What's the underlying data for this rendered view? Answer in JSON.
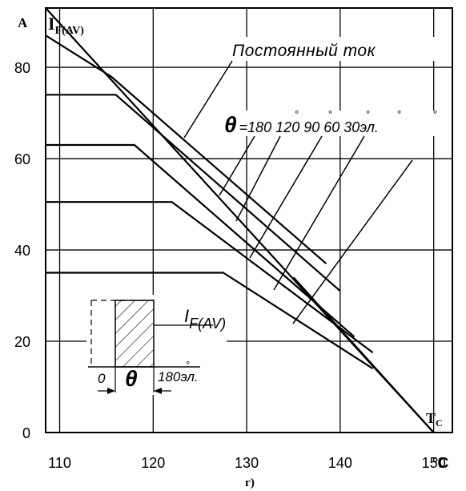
{
  "chart_data": {
    "type": "line",
    "xlim": [
      108.5,
      152
    ],
    "ylim": [
      0,
      93
    ],
    "x_ticks": [
      110,
      120,
      130,
      140,
      150
    ],
    "y_ticks": [
      0,
      20,
      40,
      60,
      80
    ],
    "x_tick_labels": [
      "110",
      "120",
      "130",
      "140",
      "150"
    ],
    "y_tick_labels": [
      "0",
      "20",
      "40",
      "60",
      "80"
    ],
    "grid": true,
    "y_unit_label": "A",
    "y_axis_label": {
      "main": "I",
      "sub": "F(AV)"
    },
    "x_axis_label": {
      "main": "T",
      "sub": "C"
    },
    "x_unit_label": "°C",
    "caption": "г)",
    "series": [
      {
        "name": "Постоянный ток",
        "x": [
          108.5,
          150
        ],
        "y": [
          93,
          0
        ]
      },
      {
        "x": [
          108.5,
          115.5,
          138.5
        ],
        "y": [
          87,
          78,
          37
        ]
      },
      {
        "x": [
          108.5,
          116,
          140
        ],
        "y": [
          74,
          74,
          31
        ]
      },
      {
        "x": [
          108.5,
          118,
          141.5
        ],
        "y": [
          63,
          63,
          21
        ]
      },
      {
        "x": [
          108.5,
          122,
          143.5
        ],
        "y": [
          50.5,
          50.5,
          17.5
        ]
      },
      {
        "x": [
          108.5,
          127.5,
          143.5
        ],
        "y": [
          35,
          35,
          14
        ]
      },
      {
        "x": [
          135,
          150
        ],
        "y": [
          34,
          0
        ]
      }
    ],
    "annotations": {
      "dc_label": "Постоянный ток",
      "theta_symbol": "θ",
      "theta_values": "=180 120 90 60 30эл.",
      "theta_degrees": [
        "°",
        "°",
        "°",
        "°",
        "°"
      ]
    },
    "inset": {
      "current_label": {
        "main": "I",
        "sub": "F(AV)"
      },
      "zero_label": "0",
      "theta_symbol": "θ",
      "end_label": "180эл.",
      "degree": "°"
    }
  }
}
